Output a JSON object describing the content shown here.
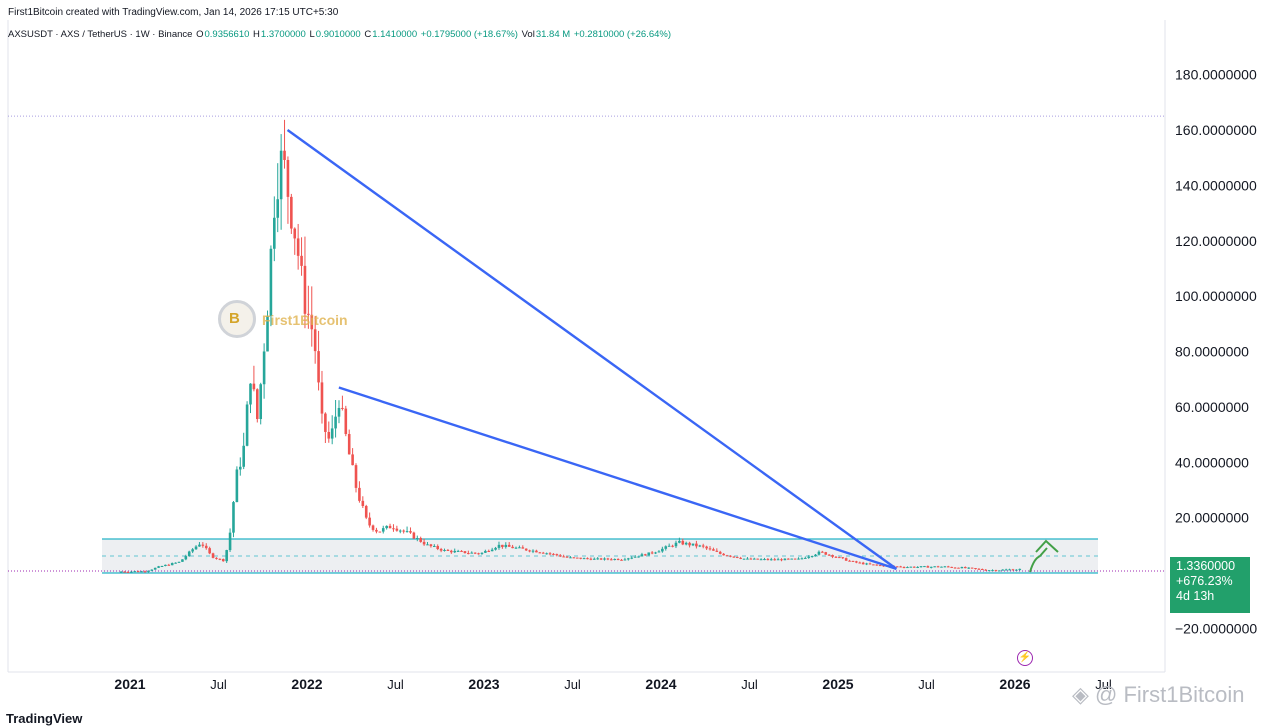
{
  "header": {
    "created_line": "First1Bitcoin created with TradingView.com, Jan 14, 2026 17:15 UTC+5:30"
  },
  "legend": {
    "symbol": "AXSUSDT · AXS / TetherUS · 1W · Binance",
    "open_label": "O",
    "open": "0.9356610",
    "high_label": "H",
    "high": "1.3700000",
    "low_label": "L",
    "low": "0.9010000",
    "close_label": "C",
    "close": "1.1410000",
    "change": "+0.1795000 (+18.67%)",
    "vol_label": "Vol",
    "vol": "31.84 M",
    "vol_change": "+0.2810000 (+26.64%)"
  },
  "price_box": {
    "price": "1.3360000",
    "change_pct": "+676.23%",
    "countdown": "4d 13h"
  },
  "watermark": {
    "small_text": "First1Bitcoin",
    "big_text": "First1Bitcoin",
    "logo_letter": "B"
  },
  "footer": {
    "tv_logo": "TradingView"
  },
  "colors": {
    "up": "#26a69a",
    "down": "#ef5350",
    "trendline": "#3a66f5",
    "zone_border": "#26b3c7",
    "zone_fill": "#e6e8ec",
    "arrow": "#43a047",
    "price_box": "#22a06b",
    "ath_line": "#a99ee0"
  },
  "chart_data": {
    "type": "candlestick",
    "title": "AXSUSDT · AXS / TetherUS · 1W · Binance",
    "x_tick_labels": [
      "2021",
      "Jul",
      "2022",
      "Jul",
      "2023",
      "Jul",
      "2024",
      "Jul",
      "2025",
      "Jul",
      "2026",
      "Jul"
    ],
    "x_tick_years": [
      2021.0,
      2021.5,
      2022.0,
      2022.5,
      2023.0,
      2023.5,
      2024.0,
      2024.5,
      2025.0,
      2025.5,
      2026.0,
      2026.5
    ],
    "y_tick_labels": [
      "180.0000000",
      "160.0000000",
      "140.0000000",
      "120.0000000",
      "100.0000000",
      "80.0000000",
      "60.0000000",
      "40.0000000",
      "20.0000000",
      "−20.0000000"
    ],
    "y_tick_values": [
      180,
      160,
      140,
      120,
      100,
      80,
      60,
      40,
      20,
      -20
    ],
    "ylim": [
      -36,
      204
    ],
    "xlim": [
      2020.6,
      2026.85
    ],
    "last_price": 1.336,
    "all_time_high": 165,
    "support_zone": {
      "low": 0,
      "high": 12
    },
    "trendlines": [
      {
        "from": [
          2021.89,
          160
        ],
        "to": [
          2025.33,
          1.5
        ]
      },
      {
        "from": [
          2022.18,
          67
        ],
        "to": [
          2025.33,
          1.5
        ]
      }
    ],
    "price_path": [
      [
        2020.95,
        0.5
      ],
      [
        2021.1,
        0.6
      ],
      [
        2021.2,
        2.5
      ],
      [
        2021.3,
        4.0
      ],
      [
        2021.38,
        9.0
      ],
      [
        2021.42,
        11.0
      ],
      [
        2021.48,
        6.0
      ],
      [
        2021.52,
        5.0
      ],
      [
        2021.55,
        4.5
      ],
      [
        2021.58,
        12.0
      ],
      [
        2021.62,
        35.0
      ],
      [
        2021.66,
        44.0
      ],
      [
        2021.7,
        72.0
      ],
      [
        2021.74,
        55.0
      ],
      [
        2021.8,
        100.0
      ],
      [
        2021.84,
        140.0
      ],
      [
        2021.88,
        150.0
      ],
      [
        2021.92,
        135.0
      ],
      [
        2021.96,
        120.0
      ],
      [
        2022.0,
        100.0
      ],
      [
        2022.06,
        85.0
      ],
      [
        2022.1,
        55.0
      ],
      [
        2022.15,
        47.0
      ],
      [
        2022.2,
        63.0
      ],
      [
        2022.25,
        45.0
      ],
      [
        2022.3,
        30.0
      ],
      [
        2022.36,
        18.0
      ],
      [
        2022.42,
        15.0
      ],
      [
        2022.5,
        17.0
      ],
      [
        2022.6,
        14.0
      ],
      [
        2022.7,
        10.0
      ],
      [
        2022.8,
        8.0
      ],
      [
        2022.9,
        7.5
      ],
      [
        2023.0,
        7.0
      ],
      [
        2023.1,
        10.0
      ],
      [
        2023.2,
        9.0
      ],
      [
        2023.35,
        7.5
      ],
      [
        2023.5,
        5.5
      ],
      [
        2023.65,
        5.0
      ],
      [
        2023.8,
        5.0
      ],
      [
        2023.95,
        7.0
      ],
      [
        2024.0,
        8.0
      ],
      [
        2024.12,
        11.0
      ],
      [
        2024.25,
        9.5
      ],
      [
        2024.35,
        7.0
      ],
      [
        2024.5,
        5.0
      ],
      [
        2024.65,
        4.8
      ],
      [
        2024.8,
        5.0
      ],
      [
        2024.92,
        7.5
      ],
      [
        2025.0,
        6.0
      ],
      [
        2025.1,
        4.0
      ],
      [
        2025.2,
        3.0
      ],
      [
        2025.3,
        2.5
      ],
      [
        2025.4,
        2.2
      ],
      [
        2025.5,
        2.2
      ],
      [
        2025.6,
        2.3
      ],
      [
        2025.7,
        2.0
      ],
      [
        2025.8,
        1.4
      ],
      [
        2025.9,
        1.0
      ],
      [
        2026.03,
        1.336
      ]
    ]
  }
}
